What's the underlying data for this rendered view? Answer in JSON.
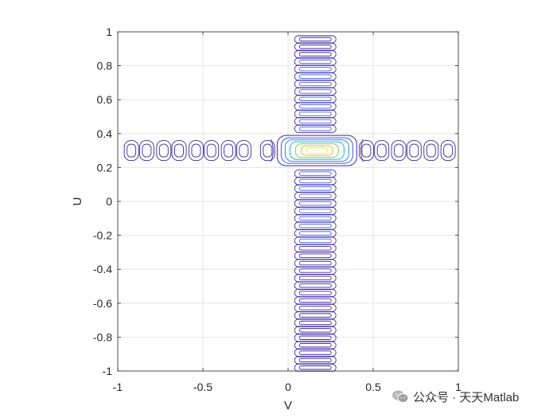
{
  "chart_data": {
    "type": "contour",
    "xlabel": "V",
    "ylabel": "U",
    "xlim": [
      -1,
      1
    ],
    "ylim": [
      -1,
      1
    ],
    "xticks": [
      -1,
      -0.5,
      0,
      0.5,
      1
    ],
    "xtick_labels": [
      "-1",
      "-0.5",
      "0",
      "0.5",
      "1"
    ],
    "yticks": [
      1,
      0.8,
      0.6,
      0.4,
      0.2,
      0,
      -0.2,
      -0.4,
      -0.6,
      -0.8,
      -1
    ],
    "ytick_labels": [
      "1",
      "0.8",
      "0.6",
      "0.4",
      "0.2",
      "0",
      "-0.2",
      "-0.4",
      "-0.6",
      "-0.8",
      "-1"
    ],
    "grid": true,
    "peak": {
      "v": 0.17,
      "u": 0.3
    },
    "horizontal_band": {
      "u_center": 0.3,
      "lobe_centers_v": [
        -0.92,
        -0.83,
        -0.73,
        -0.64,
        -0.54,
        -0.45,
        -0.35,
        -0.26,
        -0.12,
        0.46,
        0.55,
        0.65,
        0.74,
        0.84,
        0.94
      ]
    },
    "vertical_band": {
      "v_center": 0.16,
      "u_spacing": 0.044,
      "u_range": [
        -0.98,
        0.98
      ]
    },
    "contour_colors": [
      "#3e26a8",
      "#3f57f5",
      "#2a8fe9",
      "#1cb9b0",
      "#80cb58",
      "#e8b92f",
      "#f9e723"
    ]
  },
  "watermark": {
    "text": "公众号 · 天天Matlab"
  }
}
